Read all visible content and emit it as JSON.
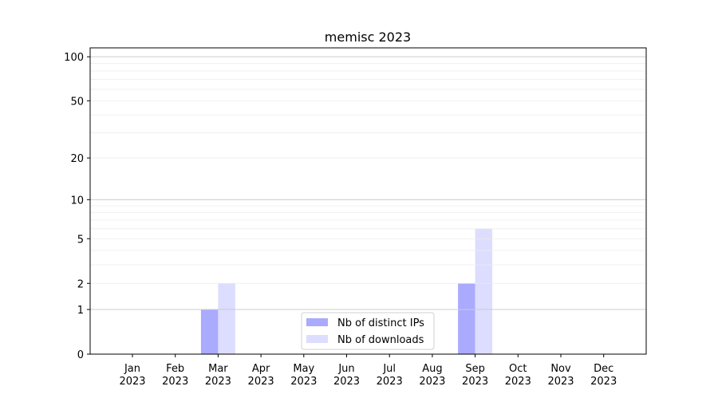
{
  "chart_data": {
    "type": "bar",
    "title": "memisc 2023",
    "xlabel": "",
    "ylabel": "",
    "yscale": "log(1+y)",
    "ylim": [
      0,
      115
    ],
    "grid": true,
    "legend_placement": "lower-center",
    "categories": [
      "Jan\n2023",
      "Feb\n2023",
      "Mar\n2023",
      "Apr\n2023",
      "May\n2023",
      "Jun\n2023",
      "Jul\n2023",
      "Aug\n2023",
      "Sep\n2023",
      "Oct\n2023",
      "Nov\n2023",
      "Dec\n2023"
    ],
    "yticks": [
      0,
      1,
      2,
      5,
      10,
      20,
      50,
      100
    ],
    "series": [
      {
        "name": "Nb of distinct IPs",
        "color": "#aaaaff",
        "values": [
          0,
          0,
          1,
          0,
          0,
          0,
          0,
          0,
          2,
          0,
          0,
          0
        ]
      },
      {
        "name": "Nb of downloads",
        "color": "#ddddff",
        "values": [
          0,
          0,
          2,
          0,
          0,
          0,
          0,
          0,
          6,
          0,
          0,
          0
        ]
      }
    ]
  }
}
